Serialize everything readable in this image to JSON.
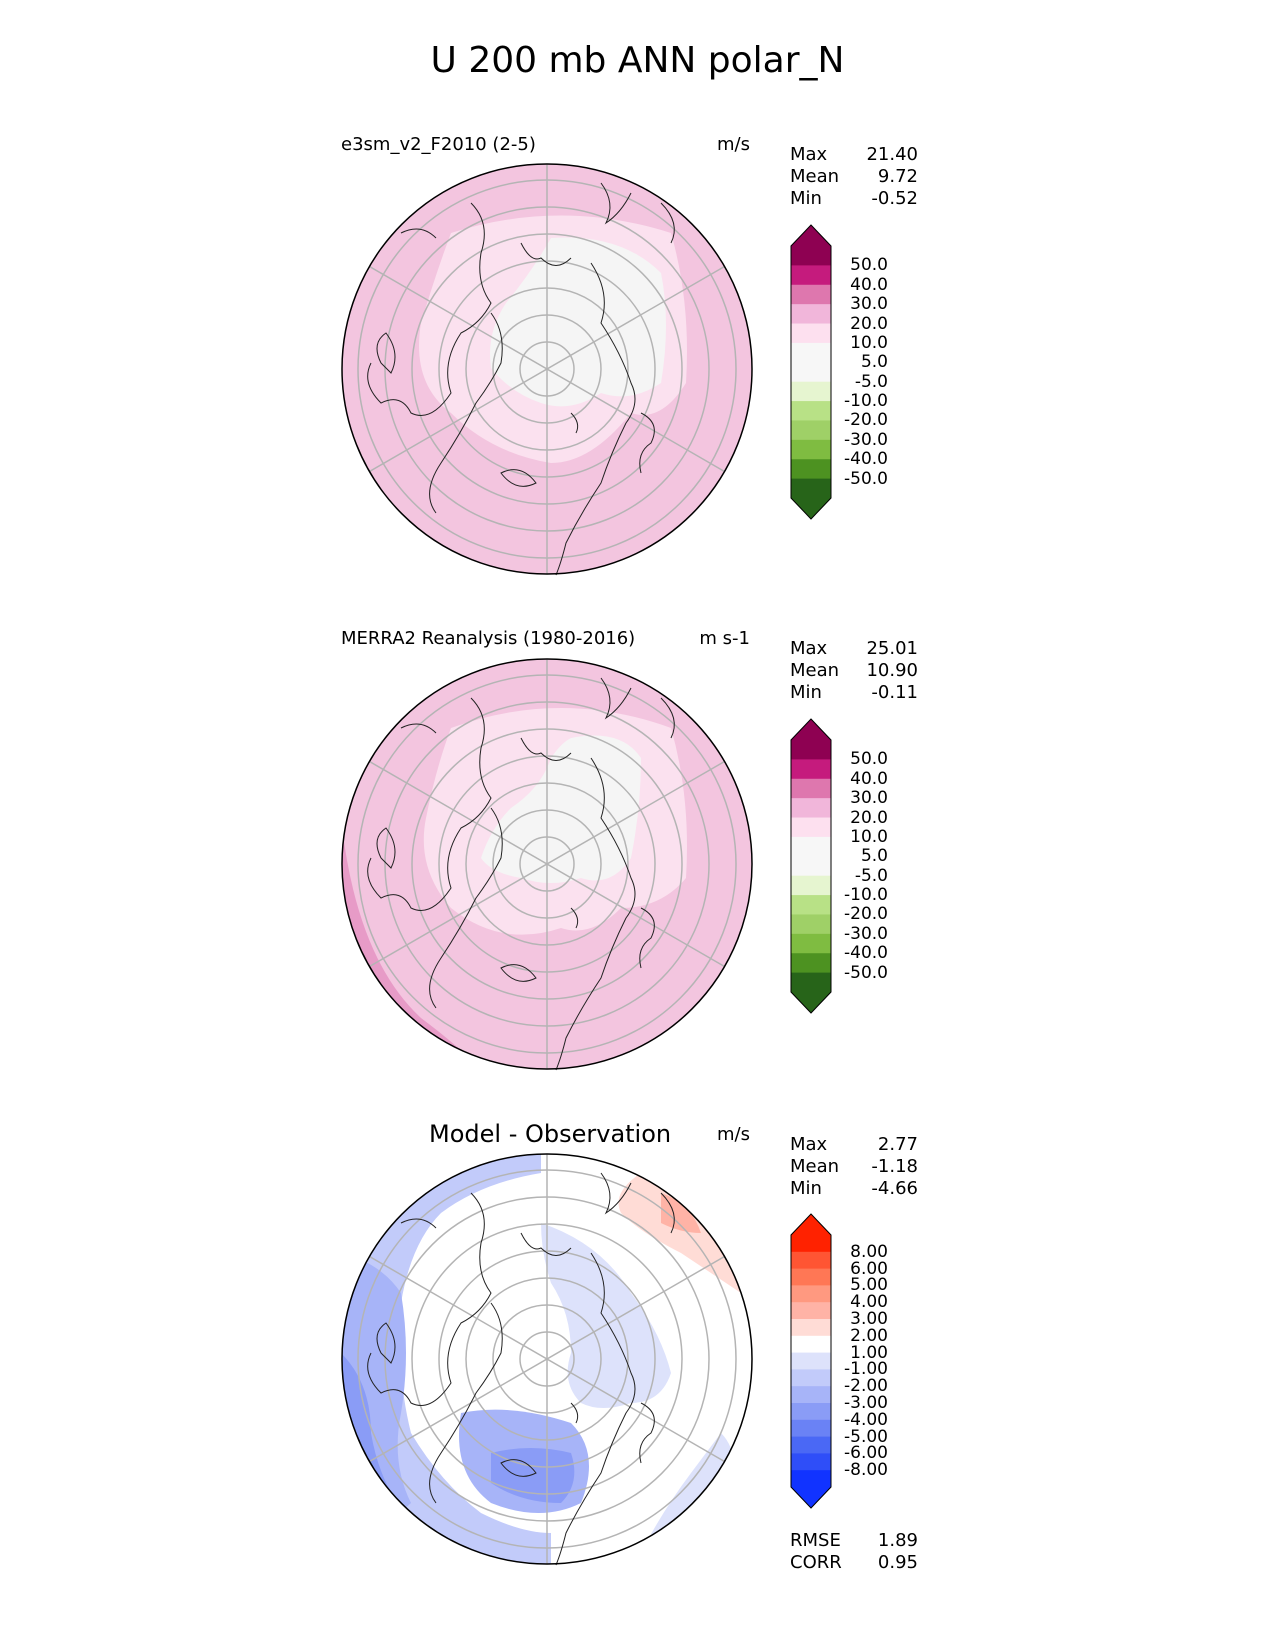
{
  "figure": {
    "title": "U 200 mb ANN polar_N"
  },
  "panels": [
    {
      "label": "e3sm_v2_F2010 (2-5)",
      "units": "m/s",
      "stats": [
        {
          "name": "Max",
          "value": "21.40"
        },
        {
          "name": "Mean",
          "value": "9.72"
        },
        {
          "name": "Min",
          "value": "-0.52"
        }
      ],
      "colorbar": {
        "labels": [
          "50.0",
          "40.0",
          "30.0",
          "20.0",
          "10.0",
          "5.0",
          "-5.0",
          "-10.0",
          "-20.0",
          "-30.0",
          "-40.0",
          "-50.0"
        ],
        "colors": [
          "#8e0152",
          "#c51b7d",
          "#de77ae",
          "#f1b6da",
          "#fde0ef",
          "#f7f7f7",
          "#f7f7f7",
          "#e6f5d0",
          "#b8e186",
          "#9fd067",
          "#7fbc41",
          "#4d9221",
          "#276419"
        ],
        "top_color": "#8e0152",
        "bottom_color": "#276419"
      }
    },
    {
      "label": "MERRA2 Reanalysis (1980-2016)",
      "units": "m s-1",
      "stats": [
        {
          "name": "Max",
          "value": "25.01"
        },
        {
          "name": "Mean",
          "value": "10.90"
        },
        {
          "name": "Min",
          "value": "-0.11"
        }
      ],
      "colorbar": {
        "labels": [
          "50.0",
          "40.0",
          "30.0",
          "20.0",
          "10.0",
          "5.0",
          "-5.0",
          "-10.0",
          "-20.0",
          "-30.0",
          "-40.0",
          "-50.0"
        ],
        "colors": [
          "#8e0152",
          "#c51b7d",
          "#de77ae",
          "#f1b6da",
          "#fde0ef",
          "#f7f7f7",
          "#f7f7f7",
          "#e6f5d0",
          "#b8e186",
          "#9fd067",
          "#7fbc41",
          "#4d9221",
          "#276419"
        ],
        "top_color": "#8e0152",
        "bottom_color": "#276419"
      }
    },
    {
      "label": "Model - Observation",
      "units": "m/s",
      "stats": [
        {
          "name": "Max",
          "value": "2.77"
        },
        {
          "name": "Mean",
          "value": "-1.18"
        },
        {
          "name": "Min",
          "value": "-4.66"
        }
      ],
      "colorbar": {
        "labels": [
          "8.00",
          "6.00",
          "5.00",
          "4.00",
          "3.00",
          "2.00",
          "1.00",
          "-1.00",
          "-2.00",
          "-3.00",
          "-4.00",
          "-5.00",
          "-6.00",
          "-8.00"
        ],
        "colors": [
          "#ff2200",
          "#ff5533",
          "#ff7755",
          "#ff9980",
          "#ffb3a6",
          "#ffdcd6",
          "#ffffff",
          "#dde2fb",
          "#c2cbfa",
          "#a7b4f8",
          "#8a9cf6",
          "#6a82f5",
          "#4a68f5",
          "#2f4ef8",
          "#1133ff"
        ],
        "top_color": "#ff2200",
        "bottom_color": "#1133ff",
        "extra": [
          {
            "name": "RMSE",
            "value": "1.89"
          },
          {
            "name": "CORR",
            "value": "0.95"
          }
        ]
      }
    }
  ]
}
